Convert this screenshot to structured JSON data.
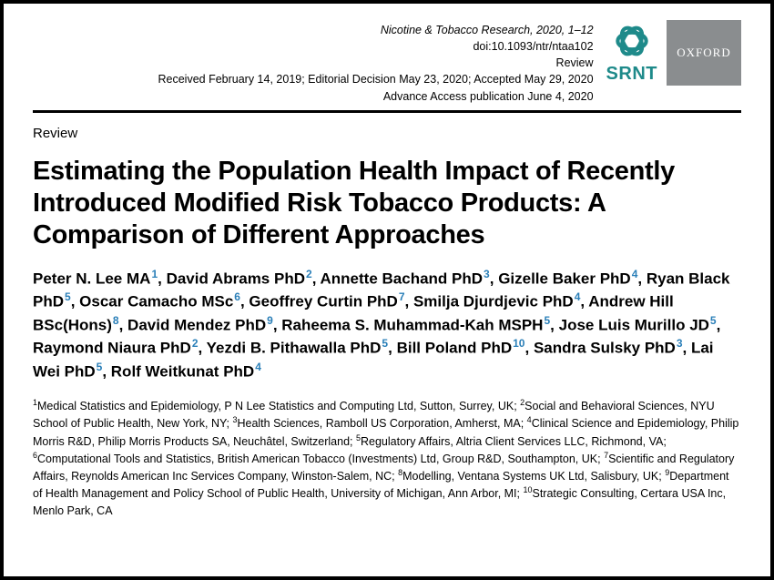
{
  "header": {
    "journal_line": "Nicotine & Tobacco Research, 2020, 1–12",
    "doi_line": "doi:10.1093/ntr/ntaa102",
    "type_line": "Review",
    "dates_line": "Received February 14, 2019; Editorial Decision May 23, 2020; Accepted May 29, 2020",
    "advance_line": "Advance Access publication June 4, 2020"
  },
  "logos": {
    "srnt_label": "SRNT",
    "srnt_color": "#1e8a8a",
    "oxford_label": "OXFORD",
    "oxford_bg": "#8a8d8f",
    "oxford_fg": "#ffffff"
  },
  "section_label": "Review",
  "title": "Estimating the Population Health Impact of Recently Introduced Modified Risk Tobacco Products: A Comparison of Different Approaches",
  "authors_html_parts": [
    {
      "name": "Peter N. Lee MA",
      "aff": "1"
    },
    {
      "name": "David Abrams PhD",
      "aff": "2"
    },
    {
      "name": "Annette Bachand PhD",
      "aff": "3"
    },
    {
      "name": "Gizelle Baker PhD",
      "aff": "4"
    },
    {
      "name": "Ryan Black PhD",
      "aff": "5"
    },
    {
      "name": "Oscar Camacho MSc",
      "aff": "6"
    },
    {
      "name": "Geoffrey Curtin PhD",
      "aff": "7"
    },
    {
      "name": "Smilja Djurdjevic PhD",
      "aff": "4"
    },
    {
      "name": "Andrew Hill BSc(Hons)",
      "aff": "8"
    },
    {
      "name": "David Mendez PhD",
      "aff": "9"
    },
    {
      "name": "Raheema S. Muhammad-Kah MSPH",
      "aff": "5"
    },
    {
      "name": "Jose Luis Murillo JD",
      "aff": "5"
    },
    {
      "name": "Raymond Niaura PhD",
      "aff": "2"
    },
    {
      "name": "Yezdi B. Pithawalla PhD",
      "aff": "5"
    },
    {
      "name": "Bill Poland PhD",
      "aff": "10"
    },
    {
      "name": "Sandra Sulsky PhD",
      "aff": "3"
    },
    {
      "name": "Lai Wei PhD",
      "aff": "5"
    },
    {
      "name": "Rolf Weitkunat PhD",
      "aff": "4"
    }
  ],
  "affiliations": [
    {
      "n": "1",
      "text": "Medical Statistics and Epidemiology, P N Lee Statistics and Computing Ltd, Sutton, Surrey, UK"
    },
    {
      "n": "2",
      "text": "Social and Behavioral Sciences, NYU School of Public Health, New York, NY"
    },
    {
      "n": "3",
      "text": "Health Sciences, Ramboll US Corporation, Amherst, MA"
    },
    {
      "n": "4",
      "text": "Clinical Science and Epidemiology, Philip Morris R&D, Philip Morris Products SA, Neuchâtel, Switzerland"
    },
    {
      "n": "5",
      "text": "Regulatory Affairs, Altria Client Services LLC, Richmond, VA"
    },
    {
      "n": "6",
      "text": "Computational Tools and Statistics, British American Tobacco (Investments) Ltd, Group R&D, Southampton, UK"
    },
    {
      "n": "7",
      "text": "Scientific and Regulatory Affairs, Reynolds American Inc Services Company, Winston-Salem, NC"
    },
    {
      "n": "8",
      "text": "Modelling, Ventana Systems UK Ltd, Salisbury, UK"
    },
    {
      "n": "9",
      "text": "Department of Health Management and Policy School of Public Health, University of Michigan, Ann Arbor, MI"
    },
    {
      "n": "10",
      "text": "Strategic Consulting, Certara USA Inc, Menlo Park, CA"
    }
  ],
  "colors": {
    "aff_sup": "#2a7fb8",
    "rule": "#000000",
    "text": "#000000",
    "bg": "#ffffff"
  },
  "typography": {
    "title_fontsize": 29,
    "title_weight": 700,
    "authors_fontsize": 17,
    "authors_weight": 700,
    "meta_fontsize": 12.5,
    "affil_fontsize": 12.5,
    "section_fontsize": 15
  }
}
